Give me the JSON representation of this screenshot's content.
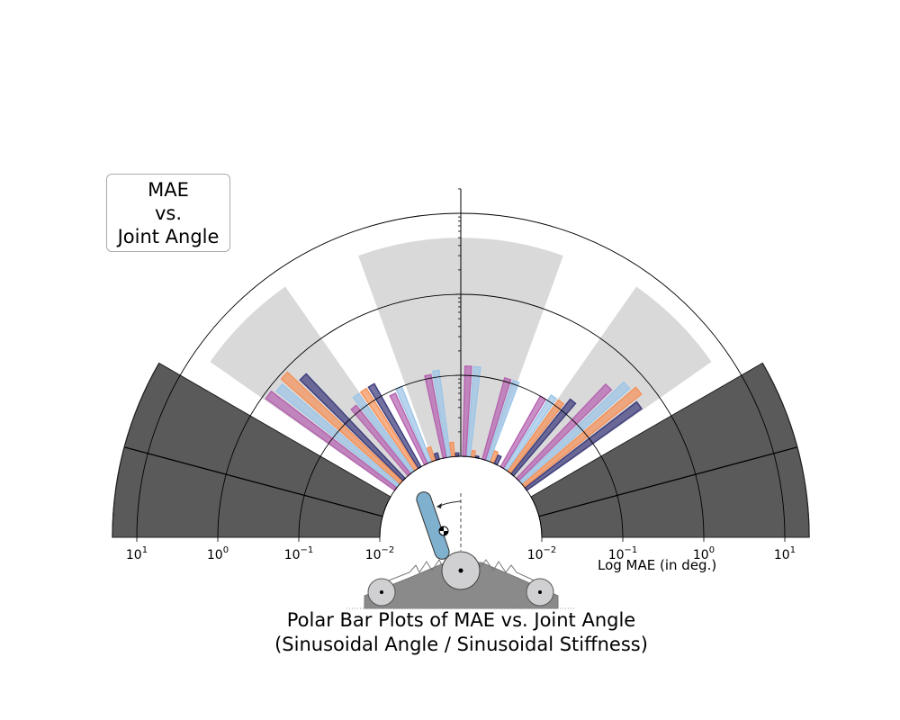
{
  "chart_data": {
    "type": "polar-bar",
    "title_line1": "Polar Bar Plots of MAE vs. Joint Angle",
    "title_line2": "(Sinusoidal Angle / Sinusoidal Stiffness)",
    "legend_text": [
      "MAE",
      "vs.",
      "Joint Angle"
    ],
    "axis_label": "Log MAE (in deg.)",
    "radial_scale": "log",
    "rlim": [
      0.01,
      20
    ],
    "radial_ticks": [
      {
        "base": "10",
        "exp": "1",
        "value": 10
      },
      {
        "base": "10",
        "exp": "0",
        "value": 1
      },
      {
        "base": "10",
        "exp": "−1",
        "value": 0.1
      },
      {
        "base": "10",
        "exp": "−2",
        "value": 0.01
      }
    ],
    "angle_range_deg": [
      0,
      180
    ],
    "colors": {
      "purple": "#b564b0",
      "blue": "#9ec5e8",
      "orange": "#f4925a",
      "navy": "#3d3c7c",
      "region_light": "#d9d9d9",
      "region_dark": "#4d4d4d"
    },
    "regions": [
      {
        "kind": "dark",
        "a0": 0,
        "a1": 15,
        "r": 20
      },
      {
        "kind": "dark",
        "a0": 15,
        "a1": 30,
        "r": 20
      },
      {
        "kind": "light",
        "a0": 35,
        "a1": 55,
        "r": 6
      },
      {
        "kind": "light",
        "a0": 70,
        "a1": 90,
        "r": 5
      },
      {
        "kind": "light",
        "a0": 90,
        "a1": 110,
        "r": 5
      },
      {
        "kind": "light",
        "a0": 125,
        "a1": 145,
        "r": 6
      },
      {
        "kind": "dark",
        "a0": 150,
        "a1": 165,
        "r": 20
      },
      {
        "kind": "dark",
        "a0": 165,
        "a1": 180,
        "r": 20
      }
    ],
    "bars": [
      {
        "angle": 36.5,
        "value": 0.55,
        "color": "navy"
      },
      {
        "angle": 39.5,
        "value": 0.7,
        "color": "orange"
      },
      {
        "angle": 42.5,
        "value": 0.6,
        "color": "blue"
      },
      {
        "angle": 45.5,
        "value": 0.4,
        "color": "purple"
      },
      {
        "angle": 50.5,
        "value": 0.15,
        "color": "navy"
      },
      {
        "angle": 53.5,
        "value": 0.12,
        "color": "orange"
      },
      {
        "angle": 56.5,
        "value": 0.12,
        "color": "blue"
      },
      {
        "angle": 59.5,
        "value": 0.1,
        "color": "purple"
      },
      {
        "angle": 64.5,
        "value": 0.013,
        "color": "navy"
      },
      {
        "angle": 67.5,
        "value": 0.014,
        "color": "orange"
      },
      {
        "angle": 70.5,
        "value": 0.11,
        "color": "blue"
      },
      {
        "angle": 73.5,
        "value": 0.11,
        "color": "purple"
      },
      {
        "angle": 78.5,
        "value": 0.0105,
        "color": "navy"
      },
      {
        "angle": 81.5,
        "value": 0.012,
        "color": "orange"
      },
      {
        "angle": 84.5,
        "value": 0.13,
        "color": "blue"
      },
      {
        "angle": 87.5,
        "value": 0.13,
        "color": "purple"
      },
      {
        "angle": 92.5,
        "value": 0.011,
        "color": "navy"
      },
      {
        "angle": 95.5,
        "value": 0.015,
        "color": "orange"
      },
      {
        "angle": 98.5,
        "value": 0.12,
        "color": "blue"
      },
      {
        "angle": 101.5,
        "value": 0.11,
        "color": "purple"
      },
      {
        "angle": 106.5,
        "value": 0.012,
        "color": "navy"
      },
      {
        "angle": 109.5,
        "value": 0.015,
        "color": "orange"
      },
      {
        "angle": 112.5,
        "value": 0.1,
        "color": "blue"
      },
      {
        "angle": 115.5,
        "value": 0.09,
        "color": "purple"
      },
      {
        "angle": 120.5,
        "value": 0.15,
        "color": "navy"
      },
      {
        "angle": 123.5,
        "value": 0.15,
        "color": "orange"
      },
      {
        "angle": 126.5,
        "value": 0.15,
        "color": "blue"
      },
      {
        "angle": 129.5,
        "value": 0.12,
        "color": "purple"
      },
      {
        "angle": 134.5,
        "value": 0.6,
        "color": "navy"
      },
      {
        "angle": 137.5,
        "value": 0.9,
        "color": "orange"
      },
      {
        "angle": 140.5,
        "value": 0.8,
        "color": "blue"
      },
      {
        "angle": 143.5,
        "value": 0.9,
        "color": "purple"
      }
    ]
  }
}
